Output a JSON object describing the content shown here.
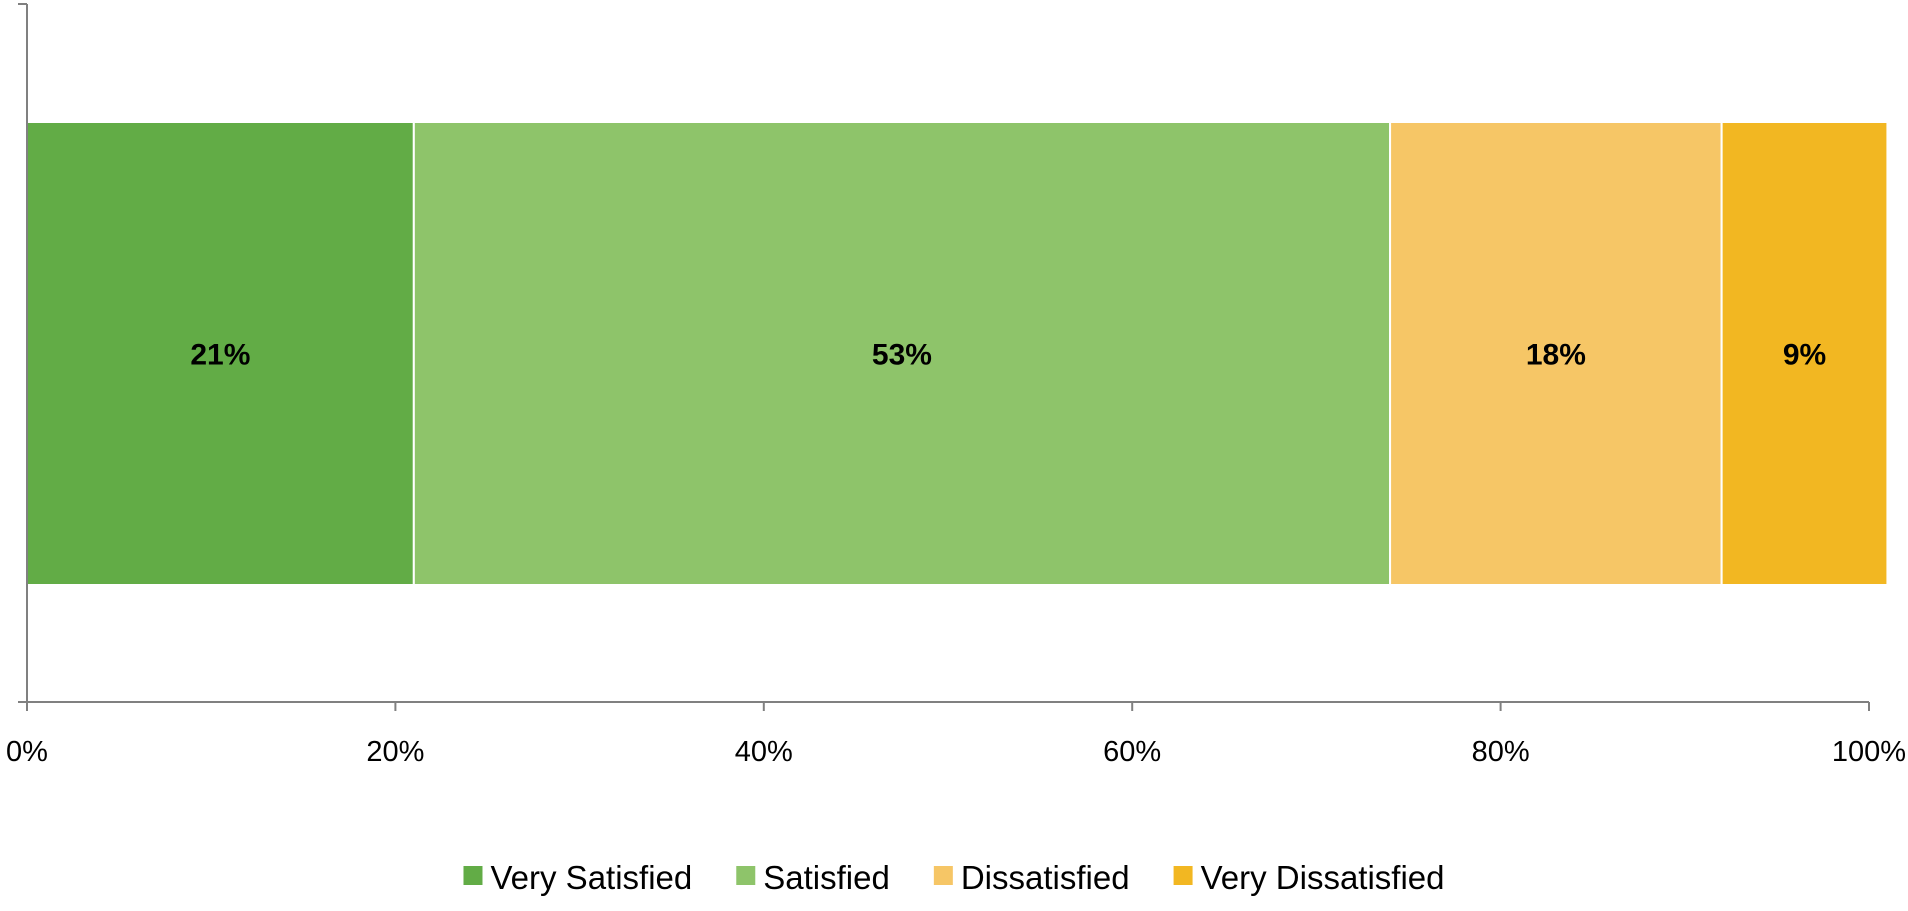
{
  "chart_data": {
    "type": "bar",
    "orientation": "horizontal",
    "stacking": "percent",
    "categories": [
      ""
    ],
    "series": [
      {
        "name": "Very Satisfied",
        "values": [
          21
        ],
        "label": "21%",
        "color": "#62AC46"
      },
      {
        "name": "Satisfied",
        "values": [
          53
        ],
        "label": "53%",
        "color": "#8EC46A"
      },
      {
        "name": "Dissatisfied",
        "values": [
          18
        ],
        "label": "18%",
        "color": "#F6C666"
      },
      {
        "name": "Very Dissatisfied",
        "values": [
          9
        ],
        "label": "9%",
        "color": "#F2B722"
      }
    ],
    "xlim": [
      0,
      100
    ],
    "x_ticks": [
      "0%",
      "20%",
      "40%",
      "60%",
      "80%",
      "100%"
    ],
    "x_tick_values": [
      0,
      20,
      40,
      60,
      80,
      100
    ],
    "title": "",
    "xlabel": "",
    "ylabel": "",
    "grid": false,
    "legend_position": "bottom",
    "axis_color": "#808080"
  }
}
